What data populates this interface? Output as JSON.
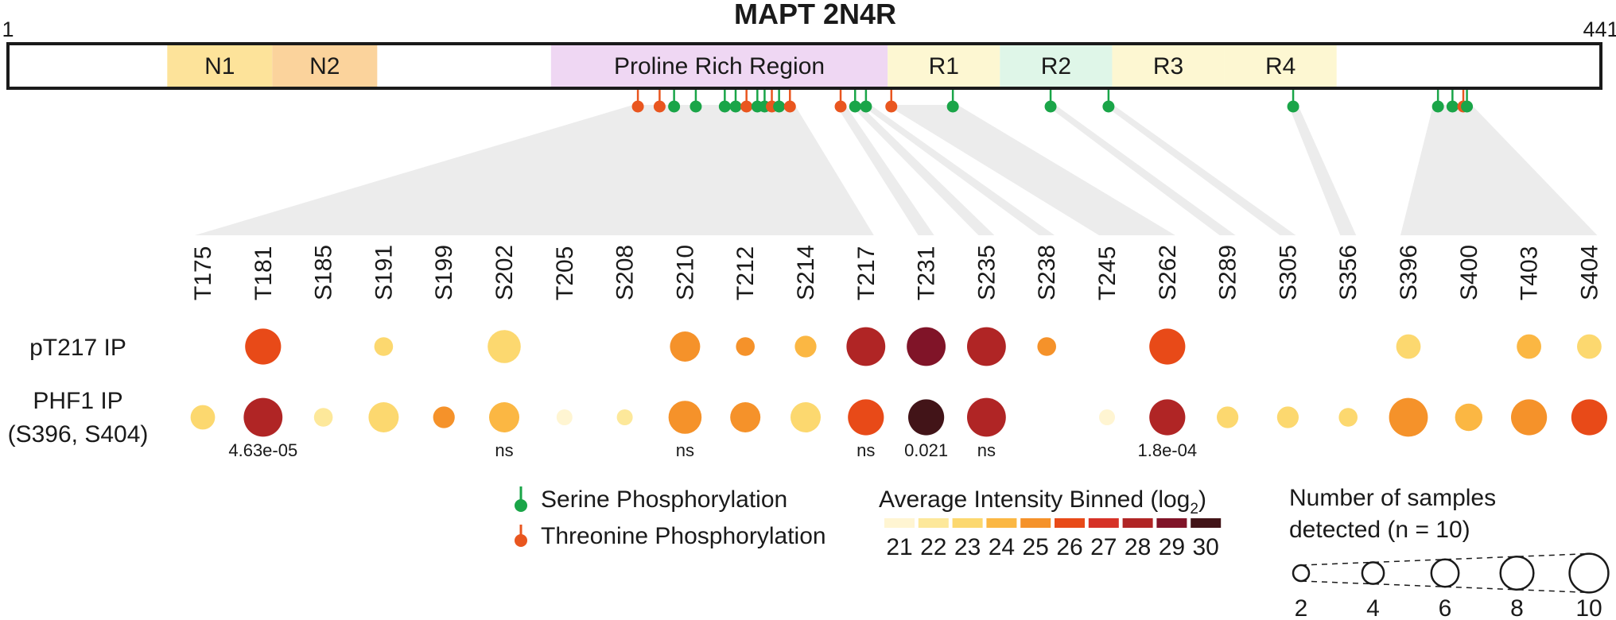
{
  "title": "MAPT 2N4R",
  "protein": {
    "start_label": "1",
    "end_label": "441",
    "length": 441,
    "domains": [
      {
        "label": "N1",
        "start": 45,
        "end": 74,
        "color": "#fde39a"
      },
      {
        "label": "N2",
        "start": 74,
        "end": 103,
        "color": "#fbd39c"
      },
      {
        "label": "Proline Rich Region",
        "start": 151,
        "end": 244,
        "color": "#efd7f3"
      },
      {
        "label": "R1",
        "start": 244,
        "end": 275,
        "color": "#fdf7d2"
      },
      {
        "label": "R2",
        "start": 275,
        "end": 306,
        "color": "#dff6e8"
      },
      {
        "label": "R3",
        "start": 306,
        "end": 337,
        "color": "#fdf7d2"
      },
      {
        "label": "R4",
        "start": 337,
        "end": 368,
        "color": "#fdf7d2"
      }
    ]
  },
  "colors": {
    "serine": "#1aa548",
    "threonine": "#e9561f",
    "guide_band": "#ececec",
    "outline": "#1a1a1a"
  },
  "sites": [
    "T175",
    "T181",
    "S185",
    "S191",
    "S199",
    "S202",
    "T205",
    "S208",
    "S210",
    "T212",
    "S214",
    "T217",
    "T231",
    "S235",
    "S238",
    "T245",
    "S262",
    "S289",
    "S305",
    "S356",
    "S396",
    "S400",
    "T403",
    "S404"
  ],
  "rows": [
    {
      "label_lines": [
        "pT217 IP"
      ],
      "points": [
        null,
        {
          "bin": 26,
          "n": 9
        },
        null,
        {
          "bin": 23,
          "n": 3
        },
        null,
        {
          "bin": 23,
          "n": 8
        },
        null,
        null,
        {
          "bin": 25,
          "n": 7
        },
        {
          "bin": 25,
          "n": 3
        },
        {
          "bin": 24,
          "n": 4
        },
        {
          "bin": 28,
          "n": 10
        },
        {
          "bin": 29,
          "n": 10
        },
        {
          "bin": 28,
          "n": 10
        },
        {
          "bin": 25,
          "n": 3
        },
        null,
        {
          "bin": 26,
          "n": 9
        },
        null,
        null,
        null,
        {
          "bin": 23,
          "n": 5
        },
        null,
        {
          "bin": 24,
          "n": 5
        },
        {
          "bin": 23,
          "n": 5
        }
      ]
    },
    {
      "label_lines": [
        "PHF1 IP",
        "(S396, S404)"
      ],
      "points": [
        {
          "bin": 23,
          "n": 5
        },
        {
          "bin": 28,
          "n": 10
        },
        {
          "bin": 22,
          "n": 3
        },
        {
          "bin": 23,
          "n": 7
        },
        {
          "bin": 25,
          "n": 4
        },
        {
          "bin": 24,
          "n": 7
        },
        {
          "bin": 21,
          "n": 2
        },
        {
          "bin": 22,
          "n": 2
        },
        {
          "bin": 25,
          "n": 8
        },
        {
          "bin": 25,
          "n": 7
        },
        {
          "bin": 23,
          "n": 7
        },
        {
          "bin": 26,
          "n": 9
        },
        {
          "bin": 30,
          "n": 9
        },
        {
          "bin": 28,
          "n": 10
        },
        null,
        {
          "bin": 21,
          "n": 2
        },
        {
          "bin": 28,
          "n": 9
        },
        {
          "bin": 23,
          "n": 4
        },
        {
          "bin": 23,
          "n": 4
        },
        {
          "bin": 23,
          "n": 3
        },
        {
          "bin": 25,
          "n": 10
        },
        {
          "bin": 24,
          "n": 6
        },
        {
          "bin": 25,
          "n": 9
        },
        {
          "bin": 26,
          "n": 9
        }
      ]
    }
  ],
  "pvalues": [
    {
      "site_index": 1,
      "text": "4.63e-05"
    },
    {
      "site_index": 5,
      "text": "ns"
    },
    {
      "site_index": 8,
      "text": "ns"
    },
    {
      "site_index": 11,
      "text": "ns"
    },
    {
      "site_index": 12,
      "text": "0.021"
    },
    {
      "site_index": 13,
      "text": "ns"
    },
    {
      "site_index": 16,
      "text": "1.8e-04"
    }
  ],
  "lollipops": [
    {
      "type": "threonine",
      "pos": 175
    },
    {
      "type": "threonine",
      "pos": 181
    },
    {
      "type": "serine",
      "pos": 185
    },
    {
      "type": "serine",
      "pos": 191
    },
    {
      "type": "serine",
      "pos": 199
    },
    {
      "type": "serine",
      "pos": 202
    },
    {
      "type": "threonine",
      "pos": 205
    },
    {
      "type": "serine",
      "pos": 208
    },
    {
      "type": "serine",
      "pos": 210
    },
    {
      "type": "threonine",
      "pos": 212
    },
    {
      "type": "serine",
      "pos": 214
    },
    {
      "type": "threonine",
      "pos": 217
    },
    {
      "type": "threonine",
      "pos": 231
    },
    {
      "type": "serine",
      "pos": 235
    },
    {
      "type": "serine",
      "pos": 238
    },
    {
      "type": "threonine",
      "pos": 245
    },
    {
      "type": "serine",
      "pos": 262
    },
    {
      "type": "serine",
      "pos": 289
    },
    {
      "type": "serine",
      "pos": 305
    },
    {
      "type": "serine",
      "pos": 356
    },
    {
      "type": "serine",
      "pos": 396
    },
    {
      "type": "serine",
      "pos": 400
    },
    {
      "type": "threonine",
      "pos": 403
    },
    {
      "type": "serine",
      "pos": 404
    }
  ],
  "legend_phospho": {
    "serine_label": "Serine Phosphorylation",
    "threonine_label": "Threonine Phosphorylation"
  },
  "legend_intensity": {
    "title": "Average Intensity Binned (log",
    "title_sub": "2",
    "title_close": ")",
    "bins": [
      {
        "value": "21",
        "color": "#fff5d2"
      },
      {
        "value": "22",
        "color": "#fde89a"
      },
      {
        "value": "23",
        "color": "#fcd86f"
      },
      {
        "value": "24",
        "color": "#fbb743"
      },
      {
        "value": "25",
        "color": "#f5922a"
      },
      {
        "value": "26",
        "color": "#e84a18"
      },
      {
        "value": "27",
        "color": "#d63227"
      },
      {
        "value": "28",
        "color": "#b02525"
      },
      {
        "value": "29",
        "color": "#801428"
      },
      {
        "value": "30",
        "color": "#421418"
      }
    ]
  },
  "legend_samples": {
    "title_line1": "Number of samples",
    "title_line2": "detected (n = 10)",
    "sizes": [
      "2",
      "4",
      "6",
      "8",
      "10"
    ]
  }
}
